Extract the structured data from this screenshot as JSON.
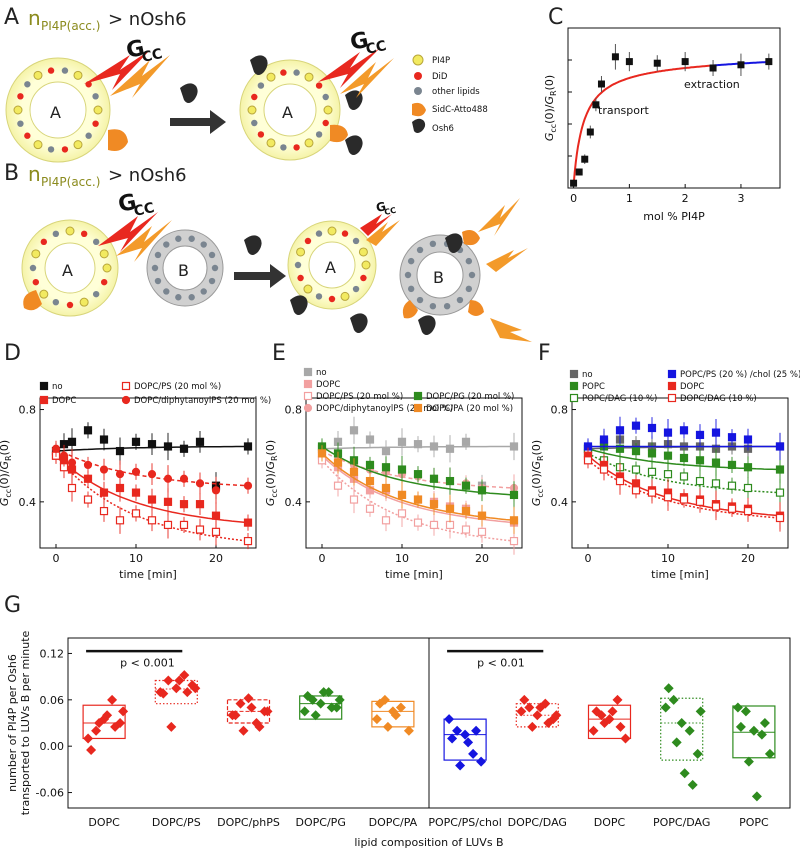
{
  "panelA": {
    "letter": "A",
    "title_n": "n",
    "title_sub": "PI4P(acc.)",
    "title_rest": "> nOsh6",
    "gcc": "G",
    "gcc_sub": "CC",
    "vesicle_label": "A",
    "legend": [
      {
        "label": "PI4P",
        "icon": "pi4p-icon"
      },
      {
        "label": "DiD",
        "icon": "did-icon"
      },
      {
        "label": "other lipids",
        "icon": "lipid-icon"
      },
      {
        "label": "SidC-Atto488",
        "icon": "sidc-icon"
      },
      {
        "label": "Osh6",
        "icon": "osh6-icon"
      }
    ]
  },
  "panelB": {
    "letter": "B",
    "title_n": "n",
    "title_sub": "PI4P(acc.)",
    "title_rest": "> nOsh6",
    "gcc": "G",
    "gcc_sub": "CC",
    "vesicle_a": "A",
    "vesicle_b": "B"
  },
  "colors": {
    "red": "#e8281f",
    "black": "#111111",
    "gray": "#a8a8a8",
    "pink": "#f2a0a0",
    "green": "#2e8b1e",
    "orange": "#f08a24",
    "blue": "#1515e0",
    "olive": "#8b8b1e"
  },
  "chart_data": [
    {
      "panel": "C",
      "type": "scatter",
      "xlabel": "mol % PI4P",
      "ylabel": "G_cc(0)/G_R(0)",
      "xlim": [
        -0.1,
        3.7
      ],
      "xticks": [
        0,
        1,
        2,
        3
      ],
      "ylim": [
        0,
        1
      ],
      "annotations": [
        "transport",
        "extraction"
      ],
      "x": [
        0.0,
        0.1,
        0.2,
        0.3,
        0.4,
        0.5,
        0.75,
        1.0,
        1.5,
        2.0,
        2.5,
        3.0,
        3.5
      ],
      "y": [
        0.03,
        0.1,
        0.18,
        0.35,
        0.52,
        0.65,
        0.82,
        0.79,
        0.78,
        0.79,
        0.75,
        0.77,
        0.79
      ],
      "err": [
        0.02,
        0.02,
        0.03,
        0.04,
        0.04,
        0.05,
        0.08,
        0.06,
        0.05,
        0.06,
        0.05,
        0.07,
        0.05
      ]
    },
    {
      "panel": "D",
      "type": "scatter",
      "xlabel": "time [min]",
      "ylabel": "G_cc(0)/G_R(0)",
      "xlim": [
        -2,
        25
      ],
      "xticks": [
        0,
        10,
        20
      ],
      "ylim": [
        0.2,
        0.85
      ],
      "yticks": [
        0.4,
        0.8
      ],
      "legend": [
        "no",
        "DOPC",
        "DOPC/PS (20 mol %)",
        "DOPC/diphytanoylPS (20 mol %)"
      ],
      "series": [
        {
          "name": "no",
          "x": [
            0,
            1,
            2,
            4,
            6,
            8,
            10,
            12,
            14,
            16,
            18,
            20,
            24
          ],
          "y": [
            0.62,
            0.65,
            0.66,
            0.71,
            0.67,
            0.62,
            0.66,
            0.65,
            0.64,
            0.63,
            0.66,
            0.47,
            0.64
          ]
        },
        {
          "name": "DOPC",
          "x": [
            0,
            1,
            2,
            4,
            6,
            8,
            10,
            12,
            14,
            16,
            18,
            20,
            24
          ],
          "y": [
            0.6,
            0.58,
            0.54,
            0.5,
            0.44,
            0.46,
            0.44,
            0.41,
            0.4,
            0.39,
            0.39,
            0.34,
            0.31
          ]
        },
        {
          "name": "DOPC/PS (20 mol %)",
          "x": [
            0,
            1,
            2,
            4,
            6,
            8,
            10,
            12,
            14,
            16,
            18,
            20,
            24
          ],
          "y": [
            0.6,
            0.55,
            0.46,
            0.41,
            0.36,
            0.32,
            0.35,
            0.32,
            0.3,
            0.3,
            0.28,
            0.27,
            0.23
          ]
        },
        {
          "name": "DOPC/diphytanoylPS (20 mol %)",
          "x": [
            0,
            1,
            2,
            4,
            6,
            8,
            10,
            12,
            14,
            16,
            18,
            20,
            24
          ],
          "y": [
            0.63,
            0.6,
            0.57,
            0.56,
            0.54,
            0.52,
            0.53,
            0.52,
            0.5,
            0.5,
            0.48,
            0.45,
            0.47
          ]
        }
      ]
    },
    {
      "panel": "E",
      "type": "scatter",
      "xlabel": "time [min]",
      "ylabel": "G_cc(0)/G_R(0)",
      "xlim": [
        -2,
        25
      ],
      "xticks": [
        0,
        10,
        20
      ],
      "ylim": [
        0.2,
        0.85
      ],
      "yticks": [
        0.4,
        0.8
      ],
      "legend": [
        "no",
        "DOPC",
        "DOPC/PS (20 mol %)",
        "DOPC/diphytanoylPS (20 mol %)",
        "DOPC/PG (20 mol %)",
        "DOPC/PA (20 mol %)"
      ],
      "series": [
        {
          "name": "no",
          "x": [
            0,
            2,
            4,
            6,
            8,
            10,
            12,
            14,
            16,
            18,
            20,
            24
          ],
          "y": [
            0.63,
            0.66,
            0.71,
            0.67,
            0.62,
            0.66,
            0.65,
            0.64,
            0.63,
            0.66,
            0.47,
            0.64
          ]
        },
        {
          "name": "DOPC",
          "x": [
            0,
            2,
            4,
            6,
            8,
            10,
            12,
            14,
            16,
            18,
            20,
            24
          ],
          "y": [
            0.6,
            0.55,
            0.5,
            0.45,
            0.45,
            0.43,
            0.41,
            0.4,
            0.38,
            0.37,
            0.34,
            0.31
          ]
        },
        {
          "name": "DOPC/PS (20 mol %)",
          "x": [
            0,
            2,
            4,
            6,
            8,
            10,
            12,
            14,
            16,
            18,
            20,
            24
          ],
          "y": [
            0.58,
            0.47,
            0.41,
            0.37,
            0.32,
            0.35,
            0.31,
            0.3,
            0.3,
            0.28,
            0.27,
            0.23
          ]
        },
        {
          "name": "DOPC/diphytanoylPS (20 mol %)",
          "x": [
            0,
            2,
            4,
            6,
            8,
            10,
            12,
            14,
            16,
            18,
            20,
            24
          ],
          "y": [
            0.62,
            0.58,
            0.56,
            0.54,
            0.53,
            0.52,
            0.51,
            0.5,
            0.49,
            0.48,
            0.46,
            0.46
          ]
        },
        {
          "name": "DOPC/PG (20 mol %)",
          "x": [
            0,
            2,
            4,
            6,
            8,
            10,
            12,
            14,
            16,
            18,
            20,
            24
          ],
          "y": [
            0.64,
            0.61,
            0.58,
            0.56,
            0.55,
            0.54,
            0.52,
            0.5,
            0.49,
            0.47,
            0.45,
            0.43
          ]
        },
        {
          "name": "DOPC/PA (20 mol %)",
          "x": [
            0,
            2,
            4,
            6,
            8,
            10,
            12,
            14,
            16,
            18,
            20,
            24
          ],
          "y": [
            0.61,
            0.57,
            0.53,
            0.49,
            0.46,
            0.43,
            0.41,
            0.39,
            0.37,
            0.36,
            0.34,
            0.32
          ]
        }
      ]
    },
    {
      "panel": "F",
      "type": "scatter",
      "xlabel": "time [min]",
      "ylabel": "G_cc(0)/G_R(0)",
      "xlim": [
        -2,
        25
      ],
      "xticks": [
        0,
        10,
        20
      ],
      "ylim": [
        0.2,
        0.85
      ],
      "yticks": [
        0.4,
        0.8
      ],
      "legend": [
        "no",
        "POPC",
        "POPC/DAG (10 %)",
        "POPC/PS (20 %) /chol (25 %)",
        "DOPC",
        "DOPC/DAG (10 %)"
      ],
      "series": [
        {
          "name": "no",
          "x": [
            0,
            2,
            4,
            6,
            8,
            10,
            12,
            14,
            16,
            18,
            20,
            24
          ],
          "y": [
            0.63,
            0.66,
            0.67,
            0.65,
            0.64,
            0.65,
            0.64,
            0.64,
            0.63,
            0.64,
            0.63,
            0.64
          ]
        },
        {
          "name": "POPC",
          "x": [
            0,
            2,
            4,
            6,
            8,
            10,
            12,
            14,
            16,
            18,
            20,
            24
          ],
          "y": [
            0.63,
            0.64,
            0.63,
            0.62,
            0.61,
            0.6,
            0.59,
            0.58,
            0.57,
            0.56,
            0.55,
            0.54
          ]
        },
        {
          "name": "POPC/DAG (10 %)",
          "x": [
            0,
            2,
            4,
            6,
            8,
            10,
            12,
            14,
            16,
            18,
            20,
            24
          ],
          "y": [
            0.61,
            0.58,
            0.55,
            0.54,
            0.53,
            0.52,
            0.51,
            0.49,
            0.48,
            0.47,
            0.46,
            0.44
          ]
        },
        {
          "name": "POPC/PS (20 %) /chol (25 %)",
          "x": [
            0,
            2,
            4,
            6,
            8,
            10,
            12,
            14,
            16,
            18,
            20,
            24
          ],
          "y": [
            0.64,
            0.67,
            0.71,
            0.73,
            0.72,
            0.7,
            0.71,
            0.69,
            0.7,
            0.68,
            0.67,
            0.64
          ]
        },
        {
          "name": "DOPC",
          "x": [
            0,
            2,
            4,
            6,
            8,
            10,
            12,
            14,
            16,
            18,
            20,
            24
          ],
          "y": [
            0.6,
            0.56,
            0.51,
            0.48,
            0.45,
            0.44,
            0.42,
            0.41,
            0.39,
            0.38,
            0.37,
            0.34
          ]
        },
        {
          "name": "DOPC/DAG (10 %)",
          "x": [
            0,
            2,
            4,
            6,
            8,
            10,
            12,
            14,
            16,
            18,
            20,
            24
          ],
          "y": [
            0.58,
            0.54,
            0.49,
            0.45,
            0.44,
            0.42,
            0.41,
            0.4,
            0.38,
            0.37,
            0.36,
            0.33
          ]
        }
      ]
    },
    {
      "panel": "G",
      "type": "scatter",
      "xlabel": "lipid composition of LUVs B",
      "ylabel": "number of PI4P per Osh6 transported to LUVs B per minute",
      "ylim": [
        -0.08,
        0.14
      ],
      "yticks": [
        -0.06,
        0.0,
        0.06,
        0.12
      ],
      "annotations": [
        "p < 0.001",
        "p < 0.01"
      ],
      "categories": [
        "DOPC",
        "DOPC/PS",
        "DOPC/phPS",
        "DOPC/PG",
        "DOPC/PA",
        "POPC/PS/chol",
        "DOPC/DAG",
        "DOPC",
        "POPC/DAG",
        "POPC"
      ],
      "groups": [
        {
          "name": "DOPC",
          "color": "red",
          "box": "solid",
          "q1": 0.01,
          "median": 0.03,
          "q3": 0.053,
          "points": [
            0.01,
            0.02,
            0.035,
            0.06,
            0.03,
            -0.005,
            0.03,
            0.04,
            0.025,
            0.045
          ]
        },
        {
          "name": "DOPC/PS",
          "color": "red",
          "box": "dotted",
          "q1": 0.055,
          "median": 0.074,
          "q3": 0.085,
          "points": [
            0.07,
            0.085,
            0.075,
            0.092,
            0.079,
            0.068,
            0.025,
            0.085,
            0.07,
            0.075
          ]
        },
        {
          "name": "DOPC/phPS",
          "color": "red",
          "box": "dashed",
          "q1": 0.03,
          "median": 0.045,
          "q3": 0.06,
          "points": [
            0.04,
            0.055,
            0.062,
            0.03,
            0.045,
            0.04,
            0.02,
            0.05,
            0.025,
            0.045
          ]
        },
        {
          "name": "DOPC/PG",
          "color": "green",
          "box": "solid",
          "q1": 0.035,
          "median": 0.055,
          "q3": 0.065,
          "points": [
            0.045,
            0.06,
            0.055,
            0.07,
            0.05,
            0.065,
            0.04,
            0.07,
            0.05,
            0.06
          ]
        },
        {
          "name": "DOPC/PA",
          "color": "orange",
          "box": "solid",
          "q1": 0.025,
          "median": 0.045,
          "q3": 0.058,
          "points": [
            0.035,
            0.06,
            0.045,
            0.05,
            0.02,
            0.055,
            0.025,
            0.04
          ]
        },
        {
          "name": "POPC/PS/chol",
          "color": "blue",
          "box": "solid",
          "q1": -0.018,
          "median": 0.015,
          "q3": 0.035,
          "points": [
            0.035,
            0.02,
            0.015,
            -0.01,
            -0.02,
            0.01,
            -0.025,
            0.005,
            0.02
          ]
        },
        {
          "name": "DOPC/DAG",
          "color": "red",
          "box": "dotted",
          "q1": 0.025,
          "median": 0.04,
          "q3": 0.055,
          "points": [
            0.045,
            0.05,
            0.04,
            0.055,
            0.035,
            0.06,
            0.025,
            0.05,
            0.03,
            0.04
          ]
        },
        {
          "name": "DOPC",
          "color": "red",
          "box": "solid",
          "q1": 0.01,
          "median": 0.035,
          "q3": 0.053,
          "points": [
            0.02,
            0.04,
            0.035,
            0.06,
            0.01,
            0.045,
            0.03,
            0.045,
            0.025
          ]
        },
        {
          "name": "POPC/DAG",
          "color": "green",
          "box": "dotted",
          "q1": -0.018,
          "median": 0.03,
          "q3": 0.062,
          "points": [
            0.05,
            0.06,
            0.03,
            0.02,
            -0.01,
            0.075,
            0.005,
            -0.035,
            -0.05,
            0.045
          ]
        },
        {
          "name": "POPC",
          "color": "green",
          "box": "solid",
          "q1": -0.015,
          "median": 0.018,
          "q3": 0.052,
          "points": [
            0.05,
            0.045,
            0.02,
            0.015,
            -0.01,
            0.025,
            -0.02,
            -0.065,
            0.03
          ]
        }
      ]
    }
  ]
}
